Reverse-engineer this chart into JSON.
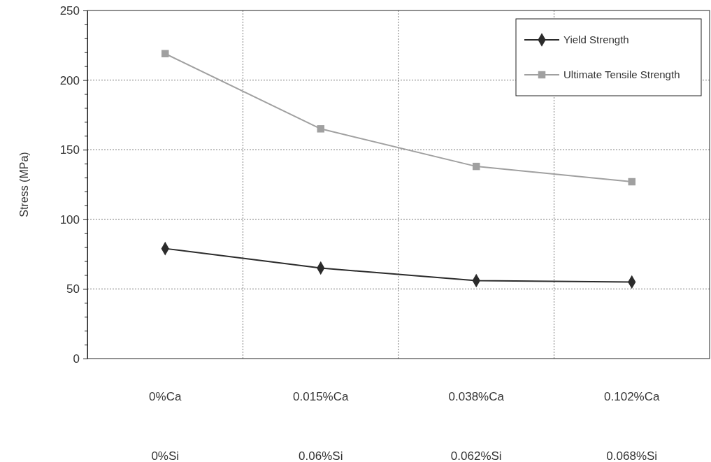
{
  "chart_data": {
    "type": "line",
    "ylabel": "Stress (MPa)",
    "categories": [
      "0%Ca\n0%Si",
      "0.015%Ca\n0.06%Si",
      "0.038%Ca\n0.062%Si",
      "0.102%Ca\n0.068%Si"
    ],
    "series": [
      {
        "name": "Yield Strength",
        "color": "#2b2b2b",
        "marker": "diamond",
        "values": [
          79,
          65,
          56,
          55
        ]
      },
      {
        "name": "Ultimate Tensile Strength",
        "color": "#a0a0a0",
        "marker": "square",
        "values": [
          219,
          165,
          138,
          127
        ]
      }
    ],
    "ylim": [
      0,
      250
    ],
    "yticks": [
      0,
      {
        "value": 10,
        "label": null
      },
      {
        "value": 20,
        "label": null
      },
      {
        "value": 30,
        "label": null
      },
      {
        "value": 40,
        "label": null
      },
      50,
      {
        "value": 60,
        "label": null
      },
      {
        "value": 70,
        "label": null
      },
      {
        "value": 80,
        "label": null
      },
      {
        "value": 90,
        "label": null
      },
      100,
      {
        "value": 110,
        "label": null
      },
      {
        "value": 120,
        "label": null
      },
      {
        "value": 130,
        "label": null
      },
      {
        "value": 140,
        "label": null
      },
      150,
      {
        "value": 160,
        "label": null
      },
      {
        "value": 170,
        "label": null
      },
      {
        "value": 180,
        "label": null
      },
      {
        "value": 190,
        "label": null
      },
      200,
      {
        "value": 210,
        "label": null
      },
      {
        "value": 220,
        "label": null
      },
      {
        "value": 230,
        "label": null
      },
      {
        "value": 240,
        "label": null
      },
      250
    ],
    "grid": true,
    "legend": "top right",
    "line_style": "solid"
  }
}
